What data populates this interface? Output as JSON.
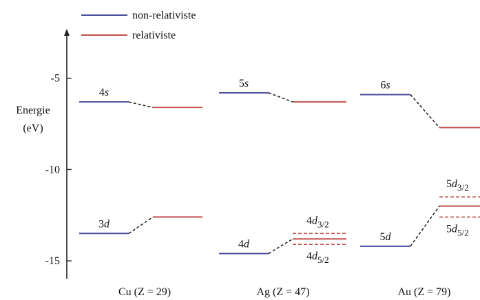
{
  "chart_data": {
    "type": "energy-level diagram",
    "title": "",
    "ylabel_line1": "Energie",
    "ylabel_line2": "(eV)",
    "ylim": [
      -15.9,
      -2.3
    ],
    "yticks": [
      {
        "value": -5,
        "label": "-5"
      },
      {
        "value": -10,
        "label": "-10"
      },
      {
        "value": -15,
        "label": "-15"
      }
    ],
    "legend": {
      "placement": "top-left",
      "entries": [
        {
          "key": "nonrel",
          "label": "non-relativiste",
          "color": "#4a4a9c"
        },
        {
          "key": "rel",
          "label": "relativiste",
          "color": "#c0504d"
        }
      ]
    },
    "groups": [
      {
        "key": "cu",
        "label": "Cu (Z = 29)"
      },
      {
        "key": "ag",
        "label": "Ag (Z = 47)"
      },
      {
        "key": "au",
        "label": "Au (Z = 79)"
      }
    ],
    "levels": [
      {
        "group": "cu",
        "orbital": "4s",
        "nonrel": -6.3,
        "rel": -6.6
      },
      {
        "group": "cu",
        "orbital": "3d",
        "nonrel": -13.5,
        "rel": -12.6
      },
      {
        "group": "ag",
        "orbital": "5s",
        "nonrel": -5.8,
        "rel": -6.3
      },
      {
        "group": "ag",
        "orbital": "4d",
        "nonrel": -14.6,
        "rel": -13.8,
        "split": [
          {
            "label_main": "4d",
            "label_sub": "3/2",
            "value": -13.5
          },
          {
            "label_main": "4d",
            "label_sub": "5/2",
            "value": -14.1
          }
        ]
      },
      {
        "group": "au",
        "orbital": "6s",
        "nonrel": -5.9,
        "rel": -7.7
      },
      {
        "group": "au",
        "orbital": "5d",
        "nonrel": -14.2,
        "rel": -12.0,
        "split": [
          {
            "label_main": "5d",
            "label_sub": "3/2",
            "value": -11.5
          },
          {
            "label_main": "5d",
            "label_sub": "5/2",
            "value": -12.6
          }
        ]
      }
    ]
  }
}
